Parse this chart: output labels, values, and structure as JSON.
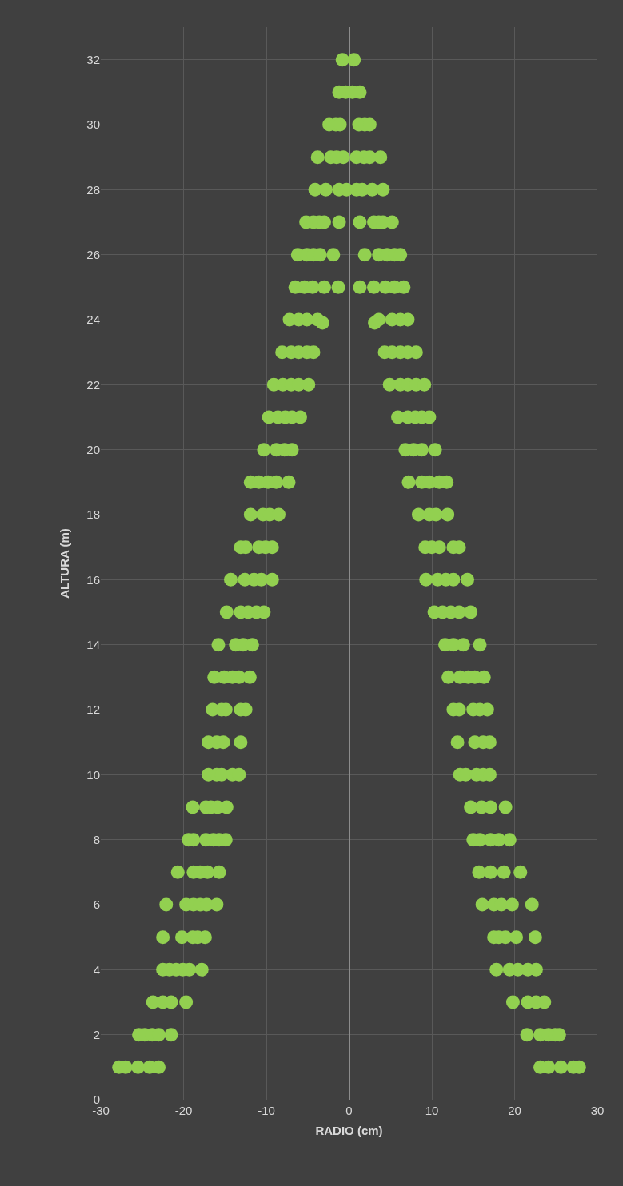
{
  "chart_data": {
    "type": "scatter",
    "xlabel": "RADIO (cm)",
    "ylabel": "ALTURA (m)",
    "series": [
      {
        "color": "#92d050",
        "x": [
          -0.8,
          0.6,
          -1.2,
          -0.4,
          0.4,
          1.3,
          -2.4,
          -1.6,
          -1.1,
          1.2,
          1.9,
          2.5,
          -3.8,
          -2.2,
          -1.5,
          -0.7,
          0.9,
          1.8,
          2.5,
          3.8,
          -4.1,
          -2.8,
          -1.2,
          -0.3,
          0.9,
          1.6,
          2.8,
          4.1,
          -5.2,
          -4.3,
          -3.6,
          -3.0,
          -1.2,
          1.3,
          3.0,
          3.6,
          4.1,
          5.2,
          -6.2,
          -5.1,
          -4.3,
          -3.5,
          -1.9,
          1.9,
          3.6,
          4.6,
          5.5,
          6.2,
          -6.5,
          -5.4,
          -4.4,
          -3.0,
          -1.3,
          1.3,
          3.0,
          4.4,
          5.5,
          6.6,
          -7.2,
          -6.1,
          -5.1,
          -3.8,
          -3.2,
          3.1,
          3.6,
          5.2,
          6.2,
          7.1,
          -8.1,
          -7.0,
          -6.1,
          -5.1,
          -4.3,
          4.3,
          5.2,
          6.2,
          7.1,
          8.1,
          -9.1,
          -8.0,
          -7.0,
          -6.1,
          -4.9,
          4.9,
          6.2,
          7.1,
          8.1,
          9.1,
          -9.7,
          -8.6,
          -7.7,
          -6.9,
          -5.9,
          5.9,
          7.1,
          8.0,
          8.8,
          9.7,
          -10.3,
          -8.8,
          -7.8,
          -6.9,
          6.8,
          7.8,
          8.8,
          10.4,
          -11.9,
          -10.9,
          -9.8,
          -8.8,
          -7.3,
          7.2,
          8.8,
          9.7,
          10.9,
          11.8,
          -11.9,
          -10.4,
          -9.6,
          -8.5,
          8.4,
          9.7,
          10.5,
          11.9,
          -13.1,
          -12.5,
          -10.9,
          -10.1,
          -9.3,
          9.2,
          10.0,
          10.9,
          12.6,
          13.3,
          -14.3,
          -12.6,
          -11.5,
          -10.6,
          -9.3,
          9.3,
          10.7,
          11.7,
          12.6,
          14.3,
          -14.8,
          -13.1,
          -12.2,
          -11.2,
          -10.3,
          10.3,
          11.3,
          12.3,
          13.3,
          14.7,
          -15.8,
          -13.7,
          -12.8,
          -11.7,
          11.6,
          12.6,
          13.8,
          15.8,
          -16.3,
          -15.1,
          -14.1,
          -13.3,
          -12.0,
          12.0,
          13.4,
          14.4,
          15.2,
          16.3,
          -16.5,
          -15.4,
          -14.9,
          -13.1,
          -12.5,
          12.6,
          13.3,
          15.0,
          15.8,
          16.7,
          -17.0,
          -16.0,
          -15.2,
          -13.1,
          13.1,
          15.2,
          16.2,
          17.0,
          -17.0,
          -16.0,
          -15.4,
          -14.1,
          -13.3,
          13.4,
          14.1,
          15.4,
          16.2,
          17.0,
          -18.9,
          -17.3,
          -16.7,
          -15.9,
          -14.8,
          14.7,
          16.0,
          17.1,
          18.9,
          -19.4,
          -18.8,
          -17.3,
          -16.4,
          -15.7,
          -14.9,
          15.0,
          15.8,
          17.1,
          18.1,
          19.4,
          -20.7,
          -18.8,
          -18.0,
          -17.1,
          -15.7,
          15.7,
          17.1,
          18.7,
          20.7,
          -22.1,
          -19.7,
          -18.8,
          -18.0,
          -17.2,
          -16.0,
          16.1,
          17.5,
          18.4,
          19.7,
          22.1,
          -22.5,
          -20.2,
          -18.9,
          -18.3,
          -17.4,
          17.5,
          18.1,
          18.9,
          20.2,
          22.5,
          -22.5,
          -21.7,
          -20.9,
          -20.1,
          -19.3,
          -17.8,
          17.8,
          19.4,
          20.4,
          21.6,
          22.6,
          -23.7,
          -22.5,
          -21.5,
          -19.7,
          19.8,
          21.6,
          22.6,
          23.6,
          -25.4,
          -24.7,
          -23.8,
          -23.0,
          -21.5,
          21.5,
          23.1,
          24.1,
          24.9,
          25.4,
          -27.8,
          -27.0,
          -25.5,
          -24.1,
          -23.0,
          23.1,
          24.1,
          25.6,
          27.1,
          27.8
        ],
        "values": [
          32,
          32,
          31,
          31,
          31,
          31,
          30,
          30,
          30,
          30,
          30,
          30,
          29,
          29,
          29,
          29,
          29,
          29,
          29,
          29,
          28,
          28,
          28,
          28,
          28,
          28,
          28,
          28,
          27,
          27,
          27,
          27,
          27,
          27,
          27,
          27,
          27,
          27,
          26,
          26,
          26,
          26,
          26,
          26,
          26,
          26,
          26,
          26,
          25,
          25,
          25,
          25,
          25,
          25,
          25,
          25,
          25,
          25,
          24,
          24,
          24,
          24,
          23.9,
          23.9,
          24,
          24,
          24,
          24,
          23,
          23,
          23,
          23,
          23,
          23,
          23,
          23,
          23,
          23,
          22,
          22,
          22,
          22,
          22,
          22,
          22,
          22,
          22,
          22,
          21,
          21,
          21,
          21,
          21,
          21,
          21,
          21,
          21,
          21,
          20,
          20,
          20,
          20,
          20,
          20,
          20,
          20,
          19,
          19,
          19,
          19,
          19,
          19,
          19,
          19,
          19,
          19,
          18,
          18,
          18,
          18,
          18,
          18,
          18,
          18,
          17,
          17,
          17,
          17,
          17,
          17,
          17,
          17,
          17,
          17,
          16,
          16,
          16,
          16,
          16,
          16,
          16,
          16,
          16,
          16,
          15,
          15,
          15,
          15,
          15,
          15,
          15,
          15,
          15,
          15,
          14,
          14,
          14,
          14,
          14,
          14,
          14,
          14,
          13,
          13,
          13,
          13,
          13,
          13,
          13,
          13,
          13,
          13,
          12,
          12,
          12,
          12,
          12,
          12,
          12,
          12,
          12,
          12,
          11,
          11,
          11,
          11,
          11,
          11,
          11,
          11,
          10,
          10,
          10,
          10,
          10,
          10,
          10,
          10,
          10,
          10,
          9,
          9,
          9,
          9,
          9,
          9,
          9,
          9,
          9,
          8,
          8,
          8,
          8,
          8,
          8,
          8,
          8,
          8,
          8,
          8,
          7,
          7,
          7,
          7,
          7,
          7,
          7,
          7,
          7,
          6,
          6,
          6,
          6,
          6,
          6,
          6,
          6,
          6,
          6,
          6,
          5,
          5,
          5,
          5,
          5,
          5,
          5,
          5,
          5,
          5,
          4,
          4,
          4,
          4,
          4,
          4,
          4,
          4,
          4,
          4,
          4,
          3,
          3,
          3,
          3,
          3,
          3,
          3,
          3,
          2,
          2,
          2,
          2,
          2,
          2,
          2,
          2,
          2,
          2,
          1,
          1,
          1,
          1,
          1,
          1,
          1,
          1,
          1,
          1
        ]
      }
    ],
    "xlim": [
      -30,
      30
    ],
    "xticks": [
      -30,
      -20,
      -10,
      0,
      10,
      20,
      30
    ],
    "ylim": [
      0,
      33
    ],
    "yticks": [
      0,
      2,
      4,
      6,
      8,
      10,
      12,
      14,
      16,
      18,
      20,
      22,
      24,
      26,
      28,
      30,
      32
    ],
    "grid": true,
    "marker": "circle"
  }
}
